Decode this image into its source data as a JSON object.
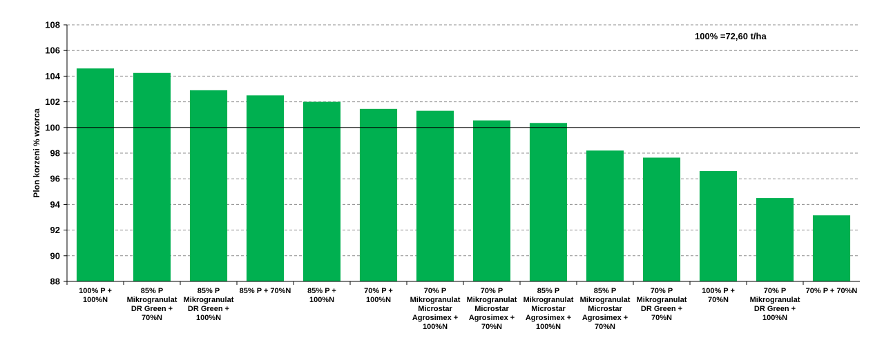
{
  "chart_data": {
    "type": "bar",
    "ylabel": "Plon korzeni % wzorca",
    "annotation": "100% =72,60 t/ha",
    "ylim": [
      88,
      108
    ],
    "yticks": [
      "108",
      "106",
      "104",
      "102",
      "100",
      "98",
      "96",
      "94",
      "92",
      "90",
      "88"
    ],
    "reference_line": 100,
    "grid": "horizontal dashed",
    "bar_color": "#00b050",
    "categories": [
      [
        "100% P +",
        "100%N"
      ],
      [
        "85% P",
        "Mikrogranulat",
        "DR Green +",
        "70%N"
      ],
      [
        "85% P",
        "Mikrogranulat",
        "DR Green +",
        "100%N"
      ],
      [
        "85% P + 70%N"
      ],
      [
        "85% P +",
        "100%N"
      ],
      [
        "70% P +",
        "100%N"
      ],
      [
        "70% P",
        "Mikrogranulat",
        "Microstar",
        "Agrosimex +",
        "100%N"
      ],
      [
        "70% P",
        "Mikrogranulat",
        "Microstar",
        "Agrosimex +",
        "70%N"
      ],
      [
        "85% P",
        "Mikrogranulat",
        "Microstar",
        "Agrosimex +",
        "100%N"
      ],
      [
        "85% P",
        "Mikrogranulat",
        "Microstar",
        "Agrosimex +",
        "70%N"
      ],
      [
        "70% P",
        "Mikrogranulat",
        "DR Green +",
        "70%N"
      ],
      [
        "100% P +",
        "70%N"
      ],
      [
        "70% P",
        "Mikrogranulat",
        "DR Green +",
        "100%N"
      ],
      [
        "70% P + 70%N"
      ]
    ],
    "values": [
      104.6,
      104.25,
      102.9,
      102.5,
      102.0,
      101.45,
      101.3,
      100.55,
      100.35,
      98.2,
      97.65,
      96.6,
      94.5,
      93.15
    ]
  }
}
